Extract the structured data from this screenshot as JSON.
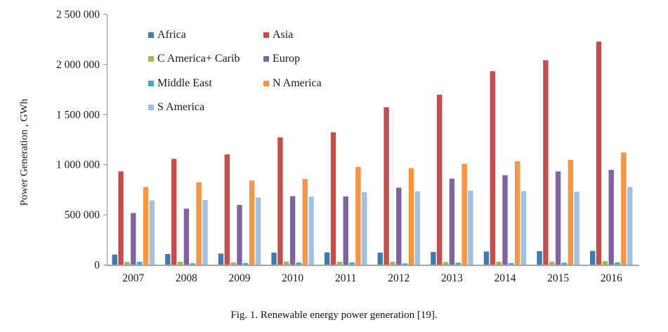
{
  "figure": {
    "caption": "Fig. 1. Renewable energy power generation [19]."
  },
  "chart_data": {
    "type": "bar",
    "title": "",
    "xlabel": "",
    "ylabel": "Power Generation , GWh",
    "ylim": [
      0,
      2500000
    ],
    "ytick_interval": 500000,
    "ytick_labels": [
      "0",
      "500 000",
      "1 000 000",
      "1 500 000",
      "2 000 000",
      "2 500 000"
    ],
    "grid": false,
    "categories": [
      "2007",
      "2008",
      "2009",
      "2010",
      "2011",
      "2012",
      "2013",
      "2014",
      "2015",
      "2016"
    ],
    "series": [
      {
        "name": "Africa",
        "color": "#3F7CAB",
        "values": [
          100000,
          105000,
          110000,
          120000,
          122000,
          120000,
          126000,
          131000,
          134000,
          137000
        ]
      },
      {
        "name": "Asia",
        "color": "#C0504D",
        "values": [
          930000,
          1055000,
          1100000,
          1270000,
          1320000,
          1570000,
          1695000,
          1930000,
          2040000,
          2225000
        ]
      },
      {
        "name": "C America+ Carib",
        "color": "#9BBB59",
        "values": [
          27000,
          28000,
          23000,
          30000,
          28000,
          28000,
          26000,
          29000,
          30000,
          35000
        ]
      },
      {
        "name": "Europ",
        "color": "#8064A2",
        "values": [
          515000,
          558000,
          595000,
          683000,
          680000,
          768000,
          858000,
          892000,
          930000,
          945000
        ]
      },
      {
        "name": "Middle East",
        "color": "#42A9C1",
        "values": [
          28000,
          13000,
          16000,
          21000,
          22000,
          12000,
          19000,
          16000,
          19000,
          23000
        ]
      },
      {
        "name": "N America",
        "color": "#F79646",
        "values": [
          775000,
          822000,
          838000,
          855000,
          975000,
          962000,
          1006000,
          1032000,
          1044000,
          1119000
        ]
      },
      {
        "name": "S America",
        "color": "#A5BFDE",
        "values": [
          640000,
          645000,
          670000,
          678000,
          723000,
          731000,
          738000,
          733000,
          728000,
          774000
        ]
      }
    ],
    "legend": {
      "position": "inside-top-left",
      "columns": 2,
      "column1": [
        "Africa",
        "C America+ Carib",
        "Middle East",
        "S America"
      ],
      "column2": [
        "Asia",
        "Europ",
        "N America"
      ]
    }
  }
}
